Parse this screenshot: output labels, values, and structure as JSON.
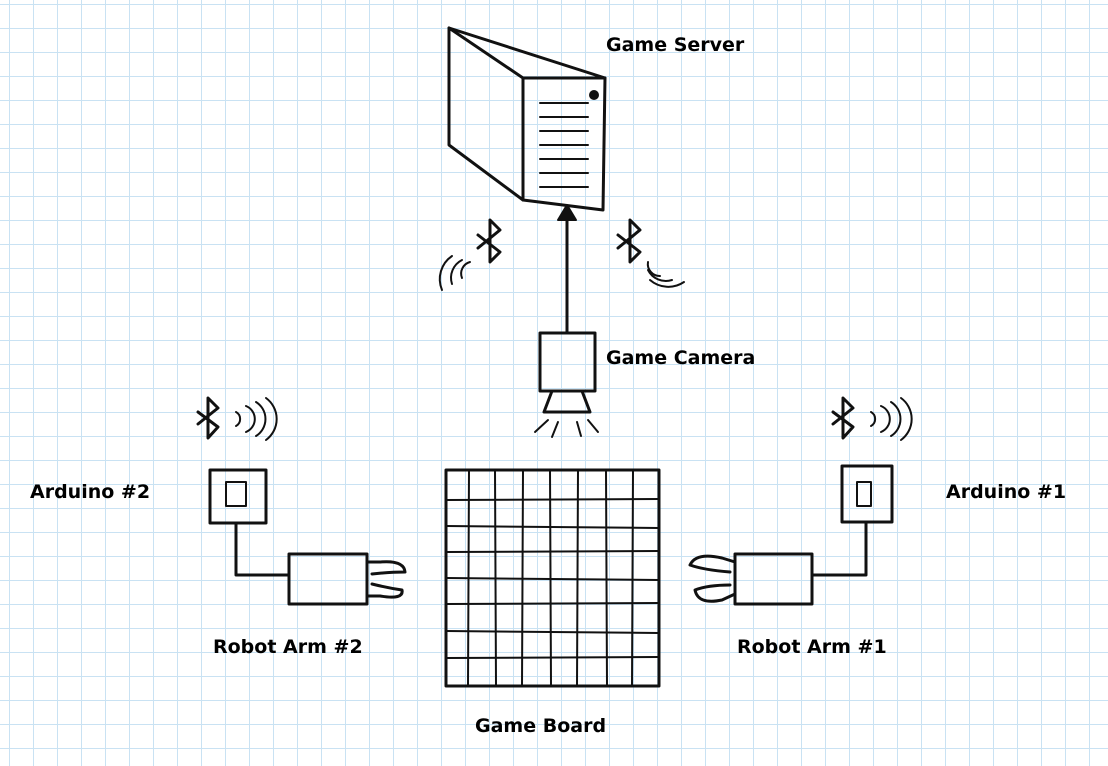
{
  "labels": {
    "game_server": "Game Server",
    "game_camera": "Game Camera",
    "arduino_2": "Arduino #2",
    "arduino_1": "Arduino #1",
    "robot_arm_2": "Robot Arm #2",
    "robot_arm_1": "Robot Arm #1",
    "game_board": "Game Board"
  },
  "icons": [
    "bluetooth-icon",
    "signal-waves-icon",
    "server-icon",
    "camera-icon",
    "arduino-icon",
    "robot-arm-icon",
    "game-board-icon",
    "arrow-icon"
  ],
  "colors": {
    "grid": "#c9e2f3",
    "ink": "#111111",
    "background": "#ffffff"
  }
}
